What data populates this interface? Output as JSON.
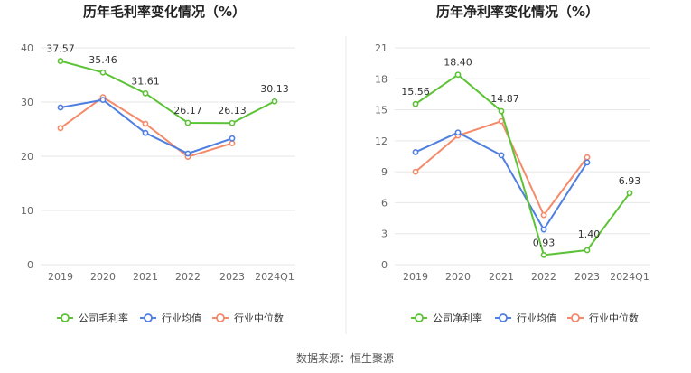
{
  "colors": {
    "company": "#5cc236",
    "industry_avg": "#4f7fe0",
    "industry_median": "#f48a6a",
    "grid": "#e6e6e6",
    "divider": "#e8e8e8"
  },
  "source": "数据来源：恒生聚源",
  "chart_data": [
    {
      "type": "line",
      "title": "历年毛利率变化情况（%）",
      "categories": [
        "2019",
        "2020",
        "2021",
        "2022",
        "2023",
        "2024Q1"
      ],
      "yticks": [
        "0",
        "10",
        "20",
        "30",
        "40"
      ],
      "ylim": [
        0,
        40
      ],
      "series": [
        {
          "name": "公司毛利率",
          "role": "company",
          "values": [
            37.57,
            35.46,
            31.61,
            26.17,
            26.13,
            30.13
          ],
          "labels": [
            "37.57",
            "35.46",
            "31.61",
            "26.17",
            "26.13",
            "30.13"
          ]
        },
        {
          "name": "行业均值",
          "role": "industry_avg",
          "values": [
            29.0,
            30.4,
            24.3,
            20.5,
            23.3,
            null
          ]
        },
        {
          "name": "行业中位数",
          "role": "industry_median",
          "values": [
            25.2,
            30.9,
            26.0,
            19.9,
            22.4,
            null
          ]
        }
      ]
    },
    {
      "type": "line",
      "title": "历年净利率变化情况（%）",
      "categories": [
        "2019",
        "2020",
        "2021",
        "2022",
        "2023",
        "2024Q1"
      ],
      "yticks": [
        "0",
        "3",
        "6",
        "9",
        "12",
        "15",
        "18",
        "21"
      ],
      "ylim": [
        0,
        21
      ],
      "series": [
        {
          "name": "公司净利率",
          "role": "company",
          "values": [
            15.56,
            18.4,
            14.87,
            0.93,
            1.4,
            6.93
          ],
          "labels": [
            "15.56",
            "18.40",
            "14.87",
            "0.93",
            "1.40",
            "6.93"
          ]
        },
        {
          "name": "行业均值",
          "role": "industry_avg",
          "values": [
            10.9,
            12.8,
            10.6,
            3.4,
            9.9,
            null
          ]
        },
        {
          "name": "行业中位数",
          "role": "industry_median",
          "values": [
            9.0,
            12.5,
            13.9,
            4.8,
            10.4,
            null
          ]
        }
      ]
    }
  ]
}
